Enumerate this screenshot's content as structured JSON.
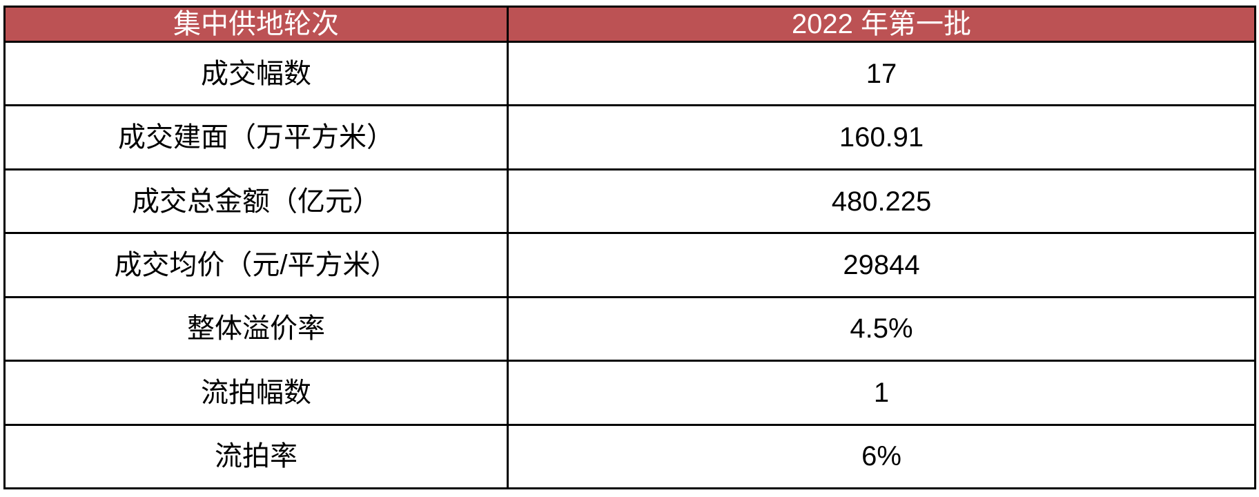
{
  "table": {
    "header": {
      "round_label": "集中供地轮次",
      "batch_label": "2022 年第一批"
    },
    "rows": [
      {
        "label": "成交幅数",
        "value": "17"
      },
      {
        "label": "成交建面（万平方米）",
        "value": "160.91"
      },
      {
        "label": "成交总金额（亿元）",
        "value": "480.225"
      },
      {
        "label": "成交均价（元/平方米）",
        "value": "29844"
      },
      {
        "label": "整体溢价率",
        "value": "4.5%"
      },
      {
        "label": "流拍幅数",
        "value": "1"
      },
      {
        "label": "流拍率",
        "value": "6%"
      }
    ],
    "colors": {
      "header_bg": "#bc5254",
      "header_text": "#ffffff",
      "body_text": "#000000",
      "border": "#000000",
      "page_bg": "#ffffff"
    }
  },
  "chart_data": {
    "type": "table",
    "title": "",
    "columns": [
      "集中供地轮次",
      "2022 年第一批"
    ],
    "rows": [
      [
        "成交幅数",
        "17"
      ],
      [
        "成交建面（万平方米）",
        "160.91"
      ],
      [
        "成交总金额（亿元）",
        "480.225"
      ],
      [
        "成交均价（元/平方米）",
        "29844"
      ],
      [
        "整体溢价率",
        "4.5%"
      ],
      [
        "流拍幅数",
        "1"
      ],
      [
        "流拍率",
        "6%"
      ]
    ],
    "layout": {
      "header_fill": "#bc5254",
      "header_text_color": "#ffffff",
      "grid": true,
      "column_width_ratio": [
        0.402,
        0.598
      ],
      "cell_alignment": "center"
    }
  }
}
